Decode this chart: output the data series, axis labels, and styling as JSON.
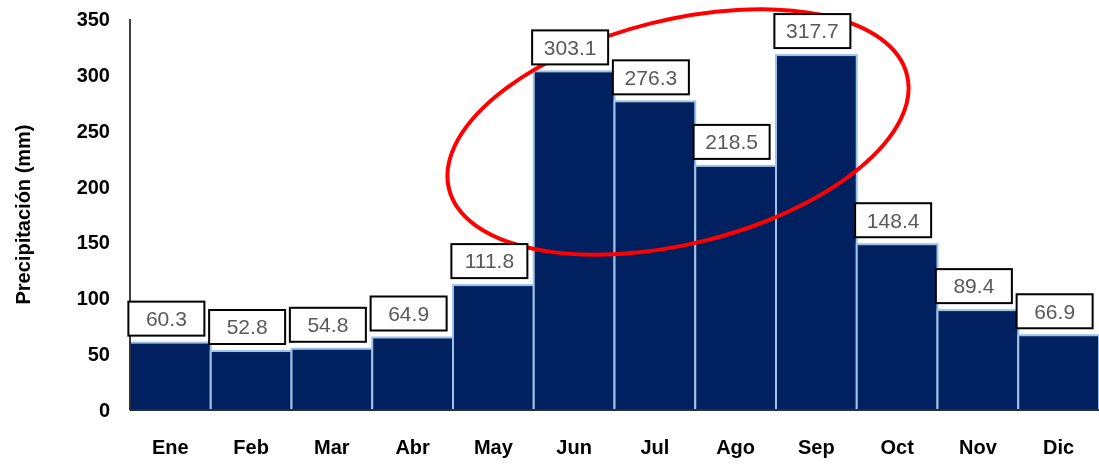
{
  "chart_data": {
    "type": "bar",
    "ylabel": "Precipitación (mm)",
    "categories": [
      "Ene",
      "Feb",
      "Mar",
      "Abr",
      "May",
      "Jun",
      "Jul",
      "Ago",
      "Sep",
      "Oct",
      "Nov",
      "Dic"
    ],
    "values": [
      60.3,
      52.8,
      54.8,
      64.9,
      111.8,
      303.1,
      276.3,
      218.5,
      317.7,
      148.4,
      89.4,
      66.9
    ],
    "color": "#002060",
    "ylim": [
      0,
      350
    ],
    "yticks": [
      0,
      50,
      100,
      150,
      200,
      250,
      300,
      350
    ],
    "grid": false,
    "data_labels": true
  }
}
